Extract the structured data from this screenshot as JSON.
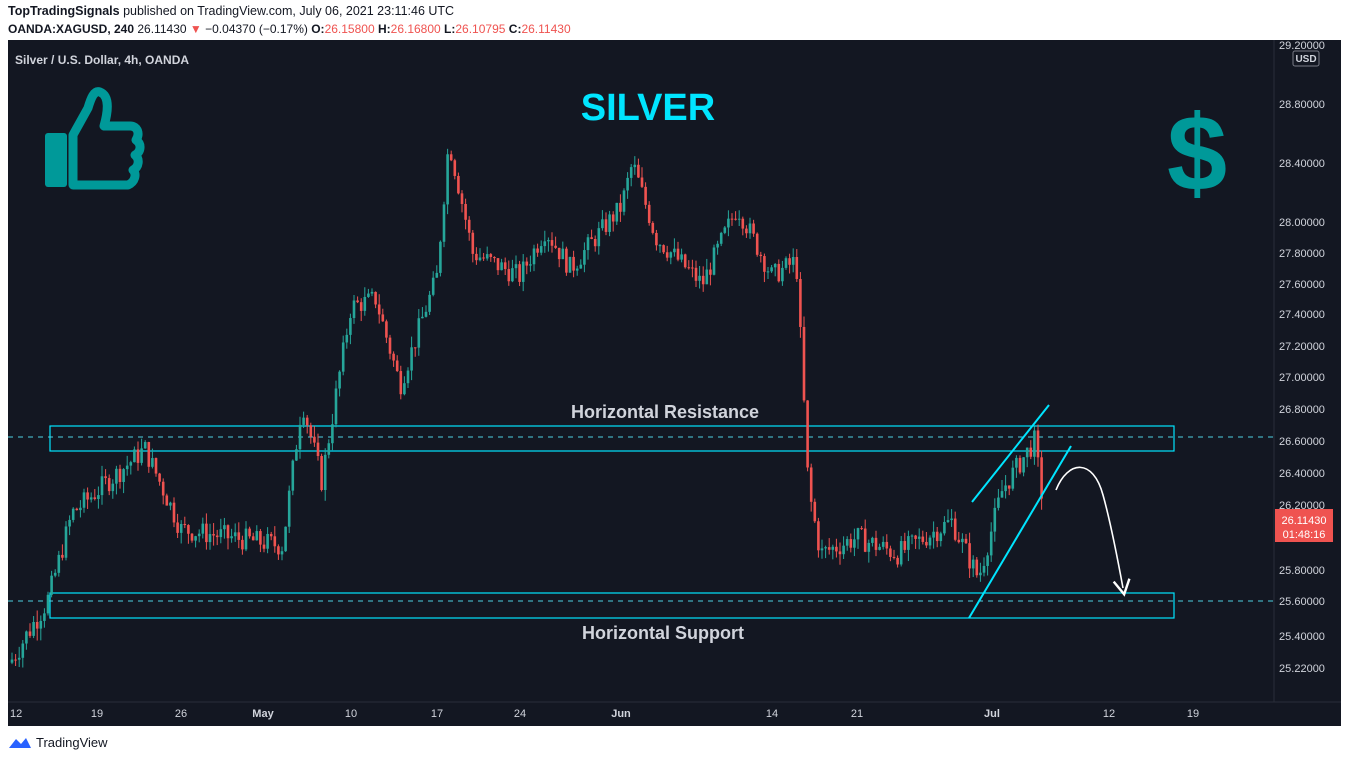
{
  "header": {
    "publisher": "TopTradingSignals",
    "published_text": "published on TradingView.com, July 06, 2021 23:11:46 UTC",
    "symbol": "OANDA:XAGUSD, 240",
    "last": "26.11430",
    "arrow": "▼",
    "change": "−0.04370 (−0.17%)",
    "o_label": "O:",
    "o": "26.15800",
    "h_label": "H:",
    "h": "26.16800",
    "l_label": "L:",
    "l": "26.10795",
    "c_label": "C:",
    "c": "26.11430"
  },
  "chart_title": "Silver / U.S. Dollar, 4h, OANDA",
  "overlay": {
    "big_title": "SILVER",
    "dollar": "$",
    "resistance_label": "Horizontal Resistance",
    "support_label": "Horizontal Support"
  },
  "price_axis": {
    "currency_badge": "USD",
    "current_price": "26.11430",
    "countdown": "01:48:16",
    "ticks": [
      "29.20000",
      "28.80000",
      "28.40000",
      "28.00000",
      "27.80000",
      "27.60000",
      "27.40000",
      "27.20000",
      "27.00000",
      "26.80000",
      "26.60000",
      "26.40000",
      "26.20000",
      "25.80000",
      "25.60000",
      "25.40000",
      "25.22000"
    ]
  },
  "time_axis": {
    "ticks": [
      "12",
      "19",
      "26",
      "May",
      "10",
      "17",
      "24",
      "Jun",
      "14",
      "21",
      "Jul",
      "12",
      "19"
    ]
  },
  "colors": {
    "background": "#131722",
    "up": "#26a69a",
    "down": "#ef5350",
    "accent": "#00e5ff",
    "teal_icon": "#009999"
  },
  "icons": [
    "thumbs-up-icon",
    "dollar-sign-icon",
    "tradingview-logo-icon"
  ],
  "footer": {
    "brand": "TradingView"
  },
  "chart_data": {
    "type": "candlestick",
    "title": "Silver / U.S. Dollar, 4h, OANDA",
    "x_range": [
      "2021-04-12",
      "2021-07-19"
    ],
    "y_range": [
      25.1,
      29.2
    ],
    "key_points": [
      {
        "date": "2021-04-12",
        "price": 25.25
      },
      {
        "date": "2021-04-15",
        "price": 25.6
      },
      {
        "date": "2021-04-17",
        "price": 26.15
      },
      {
        "date": "2021-04-23",
        "price": 26.55
      },
      {
        "date": "2021-04-26",
        "price": 26.05
      },
      {
        "date": "2021-05-03",
        "price": 25.95
      },
      {
        "date": "2021-05-05",
        "price": 26.85
      },
      {
        "date": "2021-05-07",
        "price": 26.35
      },
      {
        "date": "2021-05-10",
        "price": 27.45
      },
      {
        "date": "2021-05-12",
        "price": 27.5
      },
      {
        "date": "2021-05-14",
        "price": 26.95
      },
      {
        "date": "2021-05-17",
        "price": 27.65
      },
      {
        "date": "2021-05-18",
        "price": 28.55
      },
      {
        "date": "2021-05-20",
        "price": 27.8
      },
      {
        "date": "2021-05-24",
        "price": 27.65
      },
      {
        "date": "2021-05-26",
        "price": 27.95
      },
      {
        "date": "2021-05-28",
        "price": 27.7
      },
      {
        "date": "2021-06-01",
        "price": 28.1
      },
      {
        "date": "2021-06-02",
        "price": 28.4
      },
      {
        "date": "2021-06-04",
        "price": 27.9
      },
      {
        "date": "2021-06-08",
        "price": 27.6
      },
      {
        "date": "2021-06-11",
        "price": 28.1
      },
      {
        "date": "2021-06-14",
        "price": 27.65
      },
      {
        "date": "2021-06-16",
        "price": 27.75
      },
      {
        "date": "2021-06-17",
        "price": 26.3
      },
      {
        "date": "2021-06-18",
        "price": 25.9
      },
      {
        "date": "2021-06-21",
        "price": 26.0
      },
      {
        "date": "2021-06-24",
        "price": 25.9
      },
      {
        "date": "2021-06-28",
        "price": 26.1
      },
      {
        "date": "2021-06-30",
        "price": 25.75
      },
      {
        "date": "2021-07-02",
        "price": 26.3
      },
      {
        "date": "2021-07-05",
        "price": 26.6
      },
      {
        "date": "2021-07-06",
        "price": 26.11
      }
    ],
    "resistance_zone": [
      26.54,
      26.68
    ],
    "support_zone": [
      25.55,
      25.67
    ],
    "resistance_dashed_level": 26.62,
    "support_dashed_level": 25.61,
    "annotations": [
      "Horizontal Resistance",
      "Horizontal Support",
      "SILVER"
    ]
  }
}
